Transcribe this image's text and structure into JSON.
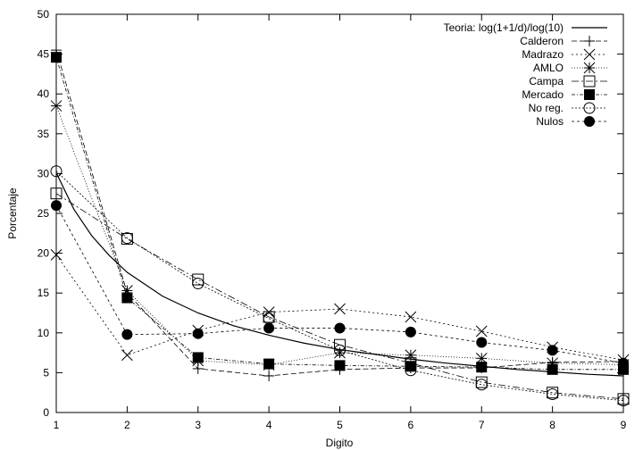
{
  "chart_data": {
    "type": "line",
    "xlabel": "Digito",
    "ylabel": "Porcentaje",
    "xlim": [
      1,
      9
    ],
    "ylim": [
      0,
      50
    ],
    "xticks": [
      "1",
      "2",
      "3",
      "4",
      "5",
      "6",
      "7",
      "8",
      "9"
    ],
    "yticks": [
      "0",
      "5",
      "10",
      "15",
      "20",
      "25",
      "30",
      "35",
      "40",
      "45",
      "50"
    ],
    "legend_position": "top-right",
    "grid": false,
    "theory": {
      "name": "Teoria: log(1+1/d)/log(10)",
      "x": [
        1,
        1.25,
        1.5,
        1.75,
        2,
        2.5,
        3,
        3.5,
        4,
        4.5,
        5,
        5.5,
        6,
        6.5,
        7,
        7.5,
        8,
        8.5,
        9
      ],
      "values": [
        30.1,
        25.5,
        22.2,
        19.7,
        17.6,
        14.6,
        12.5,
        10.9,
        9.7,
        8.7,
        7.9,
        7.3,
        6.7,
        6.2,
        5.8,
        5.4,
        5.1,
        4.8,
        4.6
      ]
    },
    "x": [
      1,
      2,
      3,
      4,
      5,
      6,
      7,
      8,
      9
    ],
    "series": [
      {
        "name": "Calderon",
        "marker": "plus",
        "dash": "6,3",
        "values": [
          45.5,
          15.0,
          5.5,
          4.6,
          5.4,
          5.6,
          5.6,
          6.3,
          6.4
        ]
      },
      {
        "name": "Madrazo",
        "marker": "cross",
        "dash": "2,3",
        "values": [
          19.8,
          7.2,
          10.3,
          12.6,
          13.0,
          12.0,
          10.2,
          8.2,
          6.6
        ]
      },
      {
        "name": "AMLO",
        "marker": "star",
        "dash": "1,2",
        "values": [
          38.5,
          15.3,
          6.5,
          6.0,
          7.5,
          7.2,
          6.8,
          6.2,
          6.0
        ]
      },
      {
        "name": "Campa",
        "marker": "square-open",
        "dash": "8,3,2,3",
        "values": [
          27.5,
          21.8,
          16.7,
          12.0,
          8.5,
          6.2,
          3.8,
          2.5,
          1.7
        ]
      },
      {
        "name": "Mercado",
        "marker": "square-filled",
        "dash": "4,2,1,2",
        "values": [
          44.6,
          14.4,
          6.9,
          6.1,
          5.9,
          5.8,
          5.7,
          5.4,
          5.4
        ]
      },
      {
        "name": "No reg.",
        "marker": "circle-open",
        "dash": "2,2",
        "values": [
          30.3,
          21.9,
          16.2,
          11.8,
          7.8,
          5.3,
          3.5,
          2.3,
          1.5
        ]
      },
      {
        "name": "Nulos",
        "marker": "circle-filled",
        "dash": "3,3",
        "values": [
          26.0,
          9.8,
          9.9,
          10.6,
          10.6,
          10.1,
          8.8,
          7.8,
          6.2
        ]
      }
    ]
  }
}
